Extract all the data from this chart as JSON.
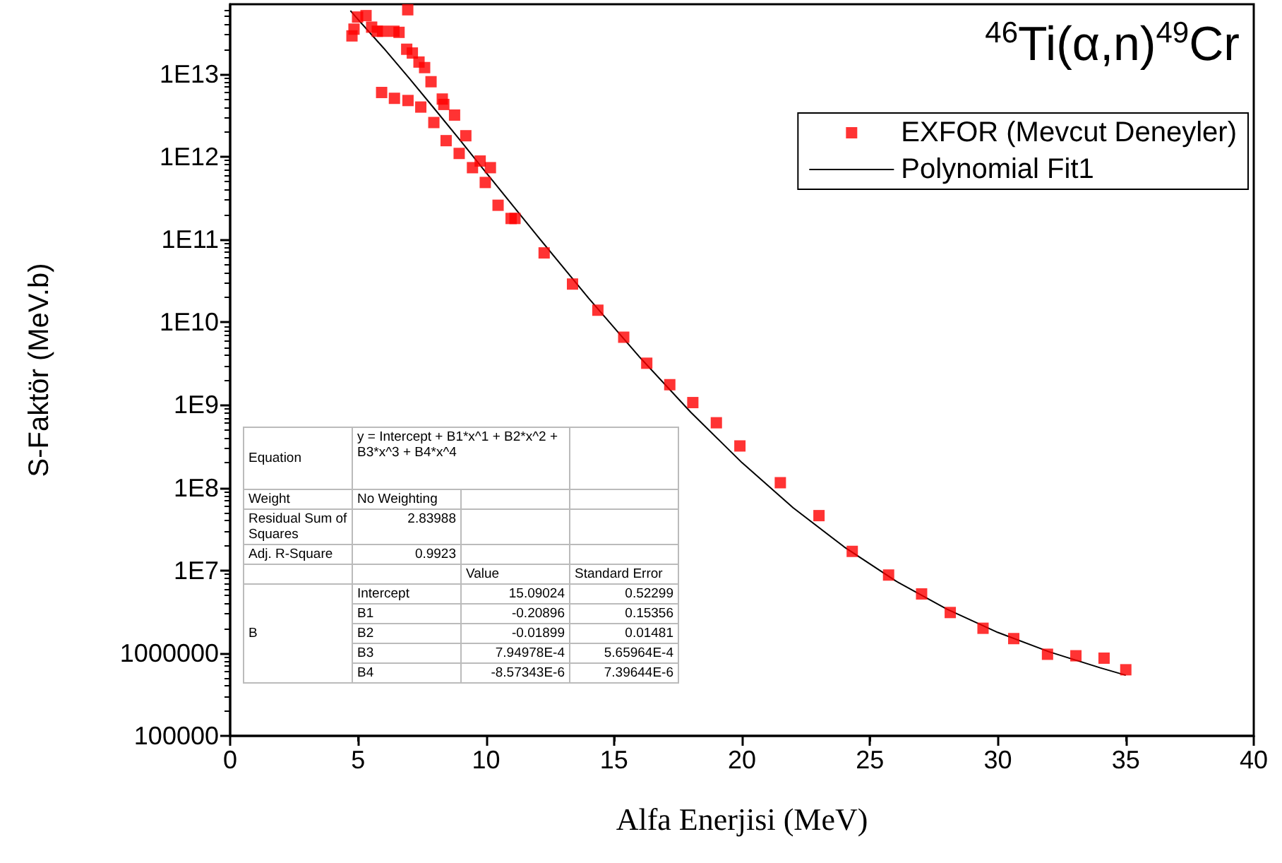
{
  "chart_data": {
    "type": "scatter",
    "title": "$^{46}$Ti(α,n)$^{49}$Cr",
    "xlabel": "Alfa Enerjisi (MeV)",
    "ylabel": "S-Faktör (MeV.b)",
    "log": "y",
    "grid": false,
    "legend": "top right",
    "xlim": [
      0,
      40
    ],
    "xticks": [
      0,
      5,
      10,
      15,
      20,
      25,
      30,
      35,
      40
    ],
    "ylim": [
      100000,
      70000000000000
    ],
    "yticks": [
      100000,
      1000000,
      {
        "value": 10000000,
        "label": "1E7"
      },
      {
        "value": 100000000,
        "label": "1E8"
      },
      {
        "value": 1000000000,
        "label": "1E9"
      },
      {
        "value": 10000000000,
        "label": "1E10"
      },
      {
        "value": 100000000000,
        "label": "1E11"
      },
      {
        "value": 1000000000000,
        "label": "1E12"
      },
      {
        "value": 10000000000000,
        "label": "1E13"
      }
    ],
    "series": [
      {
        "name": "EXFOR (Mevcut Deneyler)",
        "type": "scatter",
        "marker": "square",
        "color": "#ff0000",
        "x": [
          4.76,
          4.84,
          4.98,
          5.31,
          5.53,
          5.75,
          5.96,
          6.4,
          6.6,
          6.94,
          6.9,
          7.12,
          7.38,
          7.6,
          7.85,
          5.92,
          6.42,
          6.95,
          7.45,
          7.96,
          8.29,
          8.35,
          8.77,
          8.44,
          9.21,
          8.95,
          9.47,
          9.77,
          10.17,
          9.97,
          10.47,
          10.98,
          11.13,
          12.27,
          13.38,
          14.37,
          15.38,
          16.28,
          17.18,
          18.08,
          19.0,
          19.92,
          21.5,
          23.01,
          24.31,
          25.73,
          27.02,
          28.14,
          29.42,
          30.62,
          31.94,
          33.05,
          34.15,
          35.0
        ],
        "values": [
          29000000000000,
          35000000000000,
          49000000000000,
          51000000000000,
          37000000000000,
          33000000000000,
          33000000000000,
          33000000000000,
          32000000000000,
          60000000000000,
          20000000000000,
          18000000000000,
          14000000000000,
          12000000000000,
          8100000000000,
          6000000000000,
          5100000000000,
          4800000000000,
          4000000000000,
          2600000000000,
          5000000000000,
          4300000000000,
          3200000000000,
          1570000000000,
          1800000000000,
          1100000000000,
          740000000000,
          890000000000,
          740000000000,
          490000000000,
          260000000000,
          180000000000,
          180000000000,
          69000000000,
          29000000000,
          14000000000,
          6600000000,
          3200000000,
          1760000000,
          1070000000,
          610000000,
          320000000,
          115000000,
          46000000,
          17000000,
          8800000,
          5200000,
          3100000,
          2000000,
          1500000,
          970000,
          930000,
          870000,
          630000
        ]
      },
      {
        "name": "Polynomial Fit1",
        "type": "line",
        "marker": "none",
        "line_style": "solid",
        "color": "#000000",
        "x": [
          4.7,
          5,
          6,
          7,
          8,
          9,
          10,
          12,
          14,
          16,
          18,
          20,
          22,
          24,
          26,
          28,
          30,
          32,
          34,
          35
        ],
        "values": [
          58500000000000,
          45700000000000,
          20600000000000,
          8890000000000,
          3760000000000,
          1570000000000,
          647000000000,
          111000000000,
          19700000000,
          3800000000,
          818000000,
          201000000,
          57300000,
          19200000,
          7490000,
          3420000,
          1780000,
          1040000,
          665000,
          541000
        ]
      }
    ],
    "annotations": [
      "Equation",
      "y = Intercept + B1*x^1 + B2*x^2 + B3*x^3 + B4*x^4",
      "Weight",
      "No Weighting",
      "Residual Sum of Squares",
      "2.83988",
      "Adj. R-Square",
      "0.9923",
      "Value",
      "Standard Error",
      "B",
      "Intercept",
      "15.09024",
      "0.52299",
      "B1",
      "-0.20896",
      "0.15356",
      "B2",
      "-0.01899",
      "0.01481",
      "B3",
      "7.94978E-4",
      "5.65964E-4",
      "B4",
      "-8.57343E-6",
      "7.39644E-6"
    ]
  }
}
